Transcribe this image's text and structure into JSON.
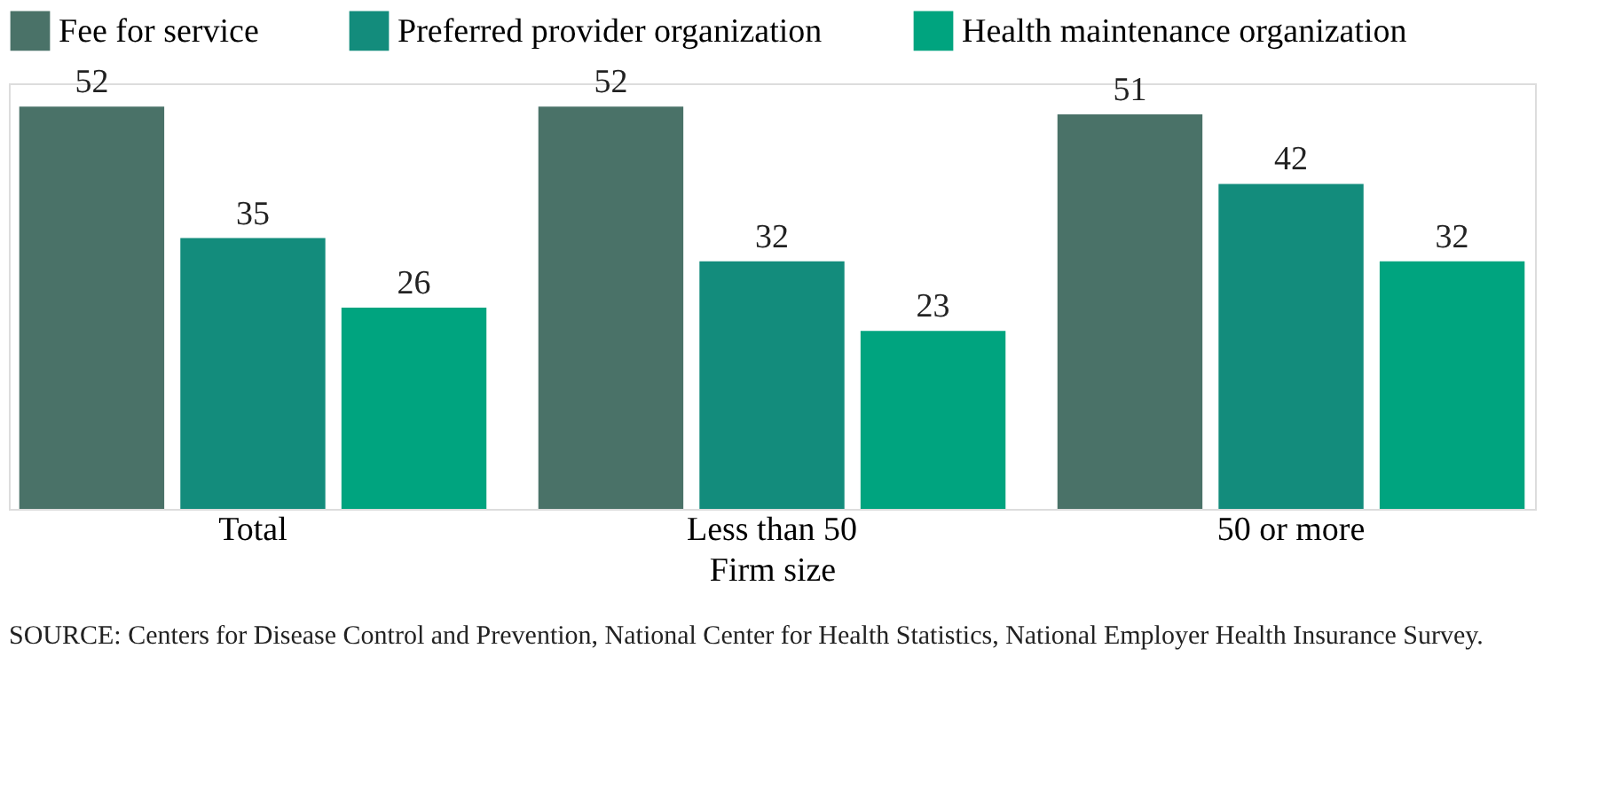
{
  "chart_data": {
    "type": "bar",
    "xlabel": "Firm size",
    "categories": [
      "Total",
      "Less than 50",
      "50 or more"
    ],
    "series": [
      {
        "name": "Fee for service",
        "color": "#4a7268",
        "values": [
          52,
          52,
          51
        ]
      },
      {
        "name": "Preferred provider organization",
        "color": "#138c7c",
        "values": [
          35,
          32,
          42
        ]
      },
      {
        "name": "Health maintenance organization",
        "color": "#00a47f",
        "values": [
          26,
          23,
          32
        ]
      }
    ],
    "data_labels": true,
    "legend": "top",
    "grid": false,
    "tick_labels": "x",
    "annotations": [
      "SOURCE: Centers for Disease Control and Prevention, National Center for Health Statistics, National Employer Health Insurance Survey."
    ]
  }
}
